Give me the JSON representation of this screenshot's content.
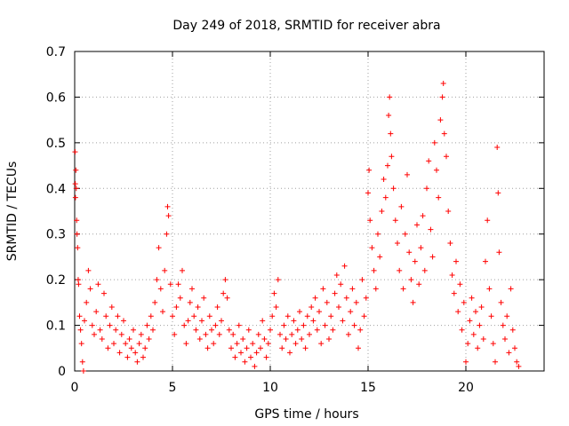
{
  "chart_data": {
    "type": "scatter",
    "title": "Day 249 of 2018, SRMTID for receiver abra",
    "xlabel": "GPS time / hours",
    "ylabel": "SRMTID / TECUs",
    "xlim": [
      0,
      24
    ],
    "ylim": [
      0,
      0.7
    ],
    "grid": true,
    "marker": "+",
    "marker_color": "#ff0000",
    "x_ticks": [
      0,
      5,
      10,
      15,
      20
    ],
    "x_tick_labels": [
      "0",
      "5",
      "10",
      "15",
      "20"
    ],
    "y_ticks": [
      0,
      0.1,
      0.2,
      0.3,
      0.4,
      0.5,
      0.6,
      0.7
    ],
    "y_tick_labels": [
      "0",
      "0.1",
      "0.2",
      "0.3",
      "0.4",
      "0.5",
      "0.6",
      "0.7"
    ],
    "series": [
      {
        "name": "SRMTID",
        "points": [
          [
            0.02,
            0.48
          ],
          [
            0.03,
            0.41
          ],
          [
            0.04,
            0.38
          ],
          [
            0.06,
            0.44
          ],
          [
            0.08,
            0.4
          ],
          [
            0.1,
            0.33
          ],
          [
            0.12,
            0.3
          ],
          [
            0.15,
            0.27
          ],
          [
            0.18,
            0.2
          ],
          [
            0.2,
            0.19
          ],
          [
            0.25,
            0.12
          ],
          [
            0.3,
            0.09
          ],
          [
            0.35,
            0.06
          ],
          [
            0.4,
            0.02
          ],
          [
            0.45,
            0.0
          ],
          [
            0.5,
            0.11
          ],
          [
            0.6,
            0.15
          ],
          [
            0.7,
            0.22
          ],
          [
            0.8,
            0.18
          ],
          [
            0.9,
            0.1
          ],
          [
            1.0,
            0.08
          ],
          [
            1.1,
            0.13
          ],
          [
            1.2,
            0.19
          ],
          [
            1.3,
            0.09
          ],
          [
            1.4,
            0.07
          ],
          [
            1.5,
            0.17
          ],
          [
            1.6,
            0.12
          ],
          [
            1.7,
            0.05
          ],
          [
            1.8,
            0.1
          ],
          [
            1.9,
            0.14
          ],
          [
            2.0,
            0.06
          ],
          [
            2.1,
            0.09
          ],
          [
            2.2,
            0.12
          ],
          [
            2.3,
            0.04
          ],
          [
            2.4,
            0.08
          ],
          [
            2.5,
            0.11
          ],
          [
            2.6,
            0.06
          ],
          [
            2.7,
            0.03
          ],
          [
            2.8,
            0.07
          ],
          [
            2.9,
            0.05
          ],
          [
            3.0,
            0.09
          ],
          [
            3.1,
            0.04
          ],
          [
            3.2,
            0.02
          ],
          [
            3.3,
            0.06
          ],
          [
            3.4,
            0.08
          ],
          [
            3.5,
            0.03
          ],
          [
            3.6,
            0.05
          ],
          [
            3.7,
            0.1
          ],
          [
            3.8,
            0.07
          ],
          [
            3.9,
            0.12
          ],
          [
            4.0,
            0.09
          ],
          [
            4.1,
            0.15
          ],
          [
            4.2,
            0.2
          ],
          [
            4.3,
            0.27
          ],
          [
            4.4,
            0.18
          ],
          [
            4.5,
            0.13
          ],
          [
            4.6,
            0.22
          ],
          [
            4.7,
            0.3
          ],
          [
            4.75,
            0.36
          ],
          [
            4.8,
            0.34
          ],
          [
            4.9,
            0.19
          ],
          [
            5.0,
            0.12
          ],
          [
            5.1,
            0.08
          ],
          [
            5.2,
            0.14
          ],
          [
            5.3,
            0.19
          ],
          [
            5.4,
            0.16
          ],
          [
            5.5,
            0.22
          ],
          [
            5.6,
            0.1
          ],
          [
            5.7,
            0.06
          ],
          [
            5.8,
            0.11
          ],
          [
            5.9,
            0.15
          ],
          [
            6.0,
            0.18
          ],
          [
            6.1,
            0.12
          ],
          [
            6.2,
            0.09
          ],
          [
            6.3,
            0.14
          ],
          [
            6.4,
            0.07
          ],
          [
            6.5,
            0.11
          ],
          [
            6.6,
            0.16
          ],
          [
            6.7,
            0.08
          ],
          [
            6.8,
            0.05
          ],
          [
            6.9,
            0.12
          ],
          [
            7.0,
            0.09
          ],
          [
            7.1,
            0.06
          ],
          [
            7.2,
            0.1
          ],
          [
            7.3,
            0.14
          ],
          [
            7.4,
            0.08
          ],
          [
            7.5,
            0.11
          ],
          [
            7.6,
            0.17
          ],
          [
            7.7,
            0.2
          ],
          [
            7.8,
            0.16
          ],
          [
            7.9,
            0.09
          ],
          [
            8.0,
            0.05
          ],
          [
            8.1,
            0.08
          ],
          [
            8.2,
            0.03
          ],
          [
            8.3,
            0.06
          ],
          [
            8.4,
            0.1
          ],
          [
            8.5,
            0.04
          ],
          [
            8.6,
            0.07
          ],
          [
            8.7,
            0.02
          ],
          [
            8.8,
            0.05
          ],
          [
            8.9,
            0.09
          ],
          [
            9.0,
            0.03
          ],
          [
            9.1,
            0.06
          ],
          [
            9.2,
            0.01
          ],
          [
            9.3,
            0.04
          ],
          [
            9.4,
            0.08
          ],
          [
            9.5,
            0.05
          ],
          [
            9.6,
            0.11
          ],
          [
            9.7,
            0.07
          ],
          [
            9.8,
            0.03
          ],
          [
            9.9,
            0.06
          ],
          [
            10.0,
            0.09
          ],
          [
            10.1,
            0.12
          ],
          [
            10.2,
            0.17
          ],
          [
            10.3,
            0.14
          ],
          [
            10.4,
            0.2
          ],
          [
            10.5,
            0.08
          ],
          [
            10.6,
            0.05
          ],
          [
            10.7,
            0.1
          ],
          [
            10.8,
            0.07
          ],
          [
            10.9,
            0.12
          ],
          [
            11.0,
            0.04
          ],
          [
            11.1,
            0.08
          ],
          [
            11.2,
            0.11
          ],
          [
            11.3,
            0.06
          ],
          [
            11.4,
            0.09
          ],
          [
            11.5,
            0.13
          ],
          [
            11.6,
            0.07
          ],
          [
            11.7,
            0.1
          ],
          [
            11.8,
            0.05
          ],
          [
            11.9,
            0.12
          ],
          [
            12.0,
            0.08
          ],
          [
            12.1,
            0.14
          ],
          [
            12.2,
            0.11
          ],
          [
            12.3,
            0.16
          ],
          [
            12.4,
            0.09
          ],
          [
            12.5,
            0.13
          ],
          [
            12.6,
            0.06
          ],
          [
            12.7,
            0.18
          ],
          [
            12.8,
            0.1
          ],
          [
            12.9,
            0.15
          ],
          [
            13.0,
            0.07
          ],
          [
            13.1,
            0.12
          ],
          [
            13.2,
            0.09
          ],
          [
            13.3,
            0.17
          ],
          [
            13.4,
            0.21
          ],
          [
            13.5,
            0.14
          ],
          [
            13.6,
            0.19
          ],
          [
            13.7,
            0.11
          ],
          [
            13.8,
            0.23
          ],
          [
            13.9,
            0.16
          ],
          [
            14.0,
            0.08
          ],
          [
            14.1,
            0.13
          ],
          [
            14.2,
            0.18
          ],
          [
            14.3,
            0.1
          ],
          [
            14.4,
            0.15
          ],
          [
            14.5,
            0.05
          ],
          [
            14.6,
            0.09
          ],
          [
            14.7,
            0.2
          ],
          [
            14.8,
            0.12
          ],
          [
            14.9,
            0.16
          ],
          [
            15.0,
            0.39
          ],
          [
            15.05,
            0.44
          ],
          [
            15.1,
            0.33
          ],
          [
            15.2,
            0.27
          ],
          [
            15.3,
            0.22
          ],
          [
            15.4,
            0.18
          ],
          [
            15.5,
            0.3
          ],
          [
            15.6,
            0.25
          ],
          [
            15.7,
            0.35
          ],
          [
            15.8,
            0.42
          ],
          [
            15.9,
            0.38
          ],
          [
            16.0,
            0.45
          ],
          [
            16.05,
            0.56
          ],
          [
            16.1,
            0.6
          ],
          [
            16.15,
            0.52
          ],
          [
            16.2,
            0.47
          ],
          [
            16.3,
            0.4
          ],
          [
            16.4,
            0.33
          ],
          [
            16.5,
            0.28
          ],
          [
            16.6,
            0.22
          ],
          [
            16.7,
            0.36
          ],
          [
            16.8,
            0.18
          ],
          [
            16.9,
            0.3
          ],
          [
            17.0,
            0.43
          ],
          [
            17.1,
            0.26
          ],
          [
            17.2,
            0.2
          ],
          [
            17.3,
            0.15
          ],
          [
            17.4,
            0.24
          ],
          [
            17.5,
            0.32
          ],
          [
            17.6,
            0.19
          ],
          [
            17.7,
            0.27
          ],
          [
            17.8,
            0.34
          ],
          [
            17.9,
            0.22
          ],
          [
            18.0,
            0.4
          ],
          [
            18.1,
            0.46
          ],
          [
            18.2,
            0.31
          ],
          [
            18.3,
            0.25
          ],
          [
            18.4,
            0.5
          ],
          [
            18.5,
            0.44
          ],
          [
            18.6,
            0.38
          ],
          [
            18.7,
            0.55
          ],
          [
            18.8,
            0.6
          ],
          [
            18.85,
            0.63
          ],
          [
            18.9,
            0.52
          ],
          [
            19.0,
            0.47
          ],
          [
            19.1,
            0.35
          ],
          [
            19.2,
            0.28
          ],
          [
            19.3,
            0.21
          ],
          [
            19.4,
            0.17
          ],
          [
            19.5,
            0.24
          ],
          [
            19.6,
            0.13
          ],
          [
            19.7,
            0.19
          ],
          [
            19.8,
            0.09
          ],
          [
            19.9,
            0.15
          ],
          [
            20.0,
            0.02
          ],
          [
            20.1,
            0.06
          ],
          [
            20.2,
            0.11
          ],
          [
            20.3,
            0.16
          ],
          [
            20.4,
            0.08
          ],
          [
            20.5,
            0.13
          ],
          [
            20.6,
            0.05
          ],
          [
            20.7,
            0.1
          ],
          [
            20.8,
            0.14
          ],
          [
            20.9,
            0.07
          ],
          [
            21.0,
            0.24
          ],
          [
            21.1,
            0.33
          ],
          [
            21.2,
            0.18
          ],
          [
            21.3,
            0.12
          ],
          [
            21.4,
            0.06
          ],
          [
            21.5,
            0.02
          ],
          [
            21.6,
            0.49
          ],
          [
            21.65,
            0.39
          ],
          [
            21.7,
            0.26
          ],
          [
            21.8,
            0.15
          ],
          [
            21.9,
            0.1
          ],
          [
            22.0,
            0.07
          ],
          [
            22.1,
            0.12
          ],
          [
            22.2,
            0.04
          ],
          [
            22.3,
            0.18
          ],
          [
            22.4,
            0.09
          ],
          [
            22.5,
            0.05
          ],
          [
            22.6,
            0.02
          ],
          [
            22.7,
            0.01
          ]
        ]
      }
    ]
  }
}
